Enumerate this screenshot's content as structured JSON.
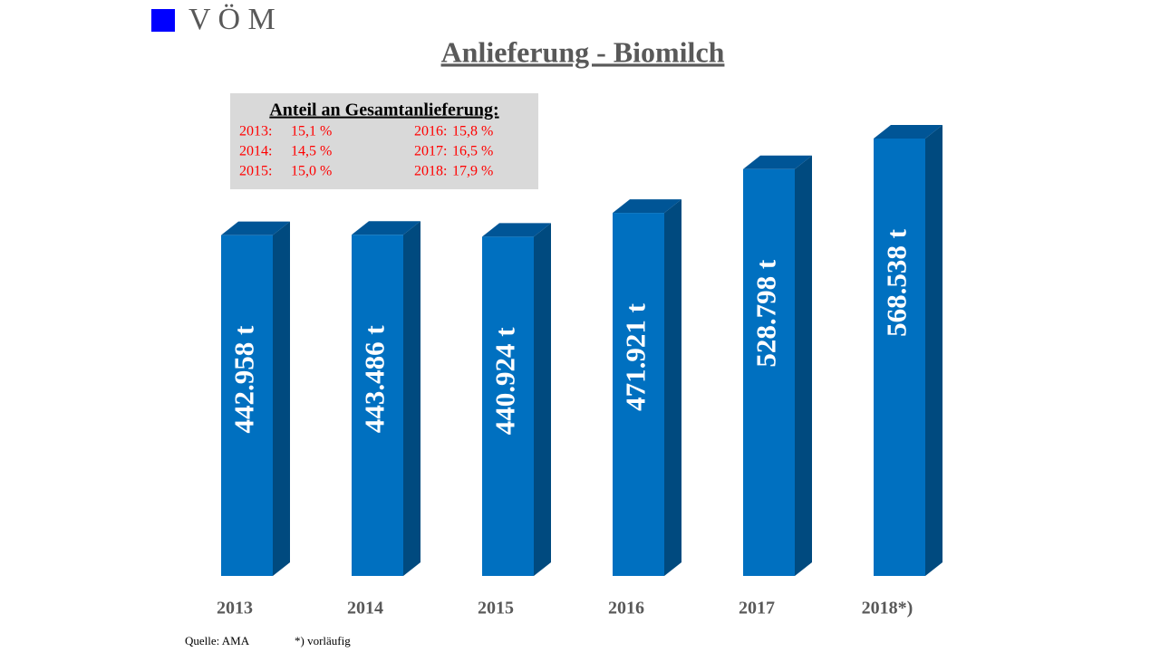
{
  "chart_data": {
    "type": "bar3d",
    "logo": "V Ö M",
    "title": "Anlieferung - Biomilch",
    "categories": [
      "2013",
      "2014",
      "2015",
      "2016",
      "2017",
      "2018*)"
    ],
    "values": [
      442958,
      443486,
      440924,
      471921,
      528798,
      568538
    ],
    "value_labels": [
      "442.958 t",
      "443.486 t",
      "440.924 t",
      "471.921 t",
      "528.798 t",
      "568.538 t"
    ],
    "color": "#0070c0",
    "share": {
      "title": "Anteil an Gesamtanlieferung:",
      "categories": [
        "2013:",
        "2014:",
        "2015:",
        "2016:",
        "2017:",
        "2018:"
      ],
      "values": [
        15.1,
        14.5,
        15.0,
        15.8,
        16.5,
        17.9
      ],
      "value_labels": [
        "15,1 %",
        "14,5 %",
        "15,0 %",
        "15,8 %",
        "16,5 %",
        "17,9 %"
      ],
      "color": "#ff0000"
    },
    "source": "Quelle: AMA",
    "note": "*) vorläufig"
  }
}
